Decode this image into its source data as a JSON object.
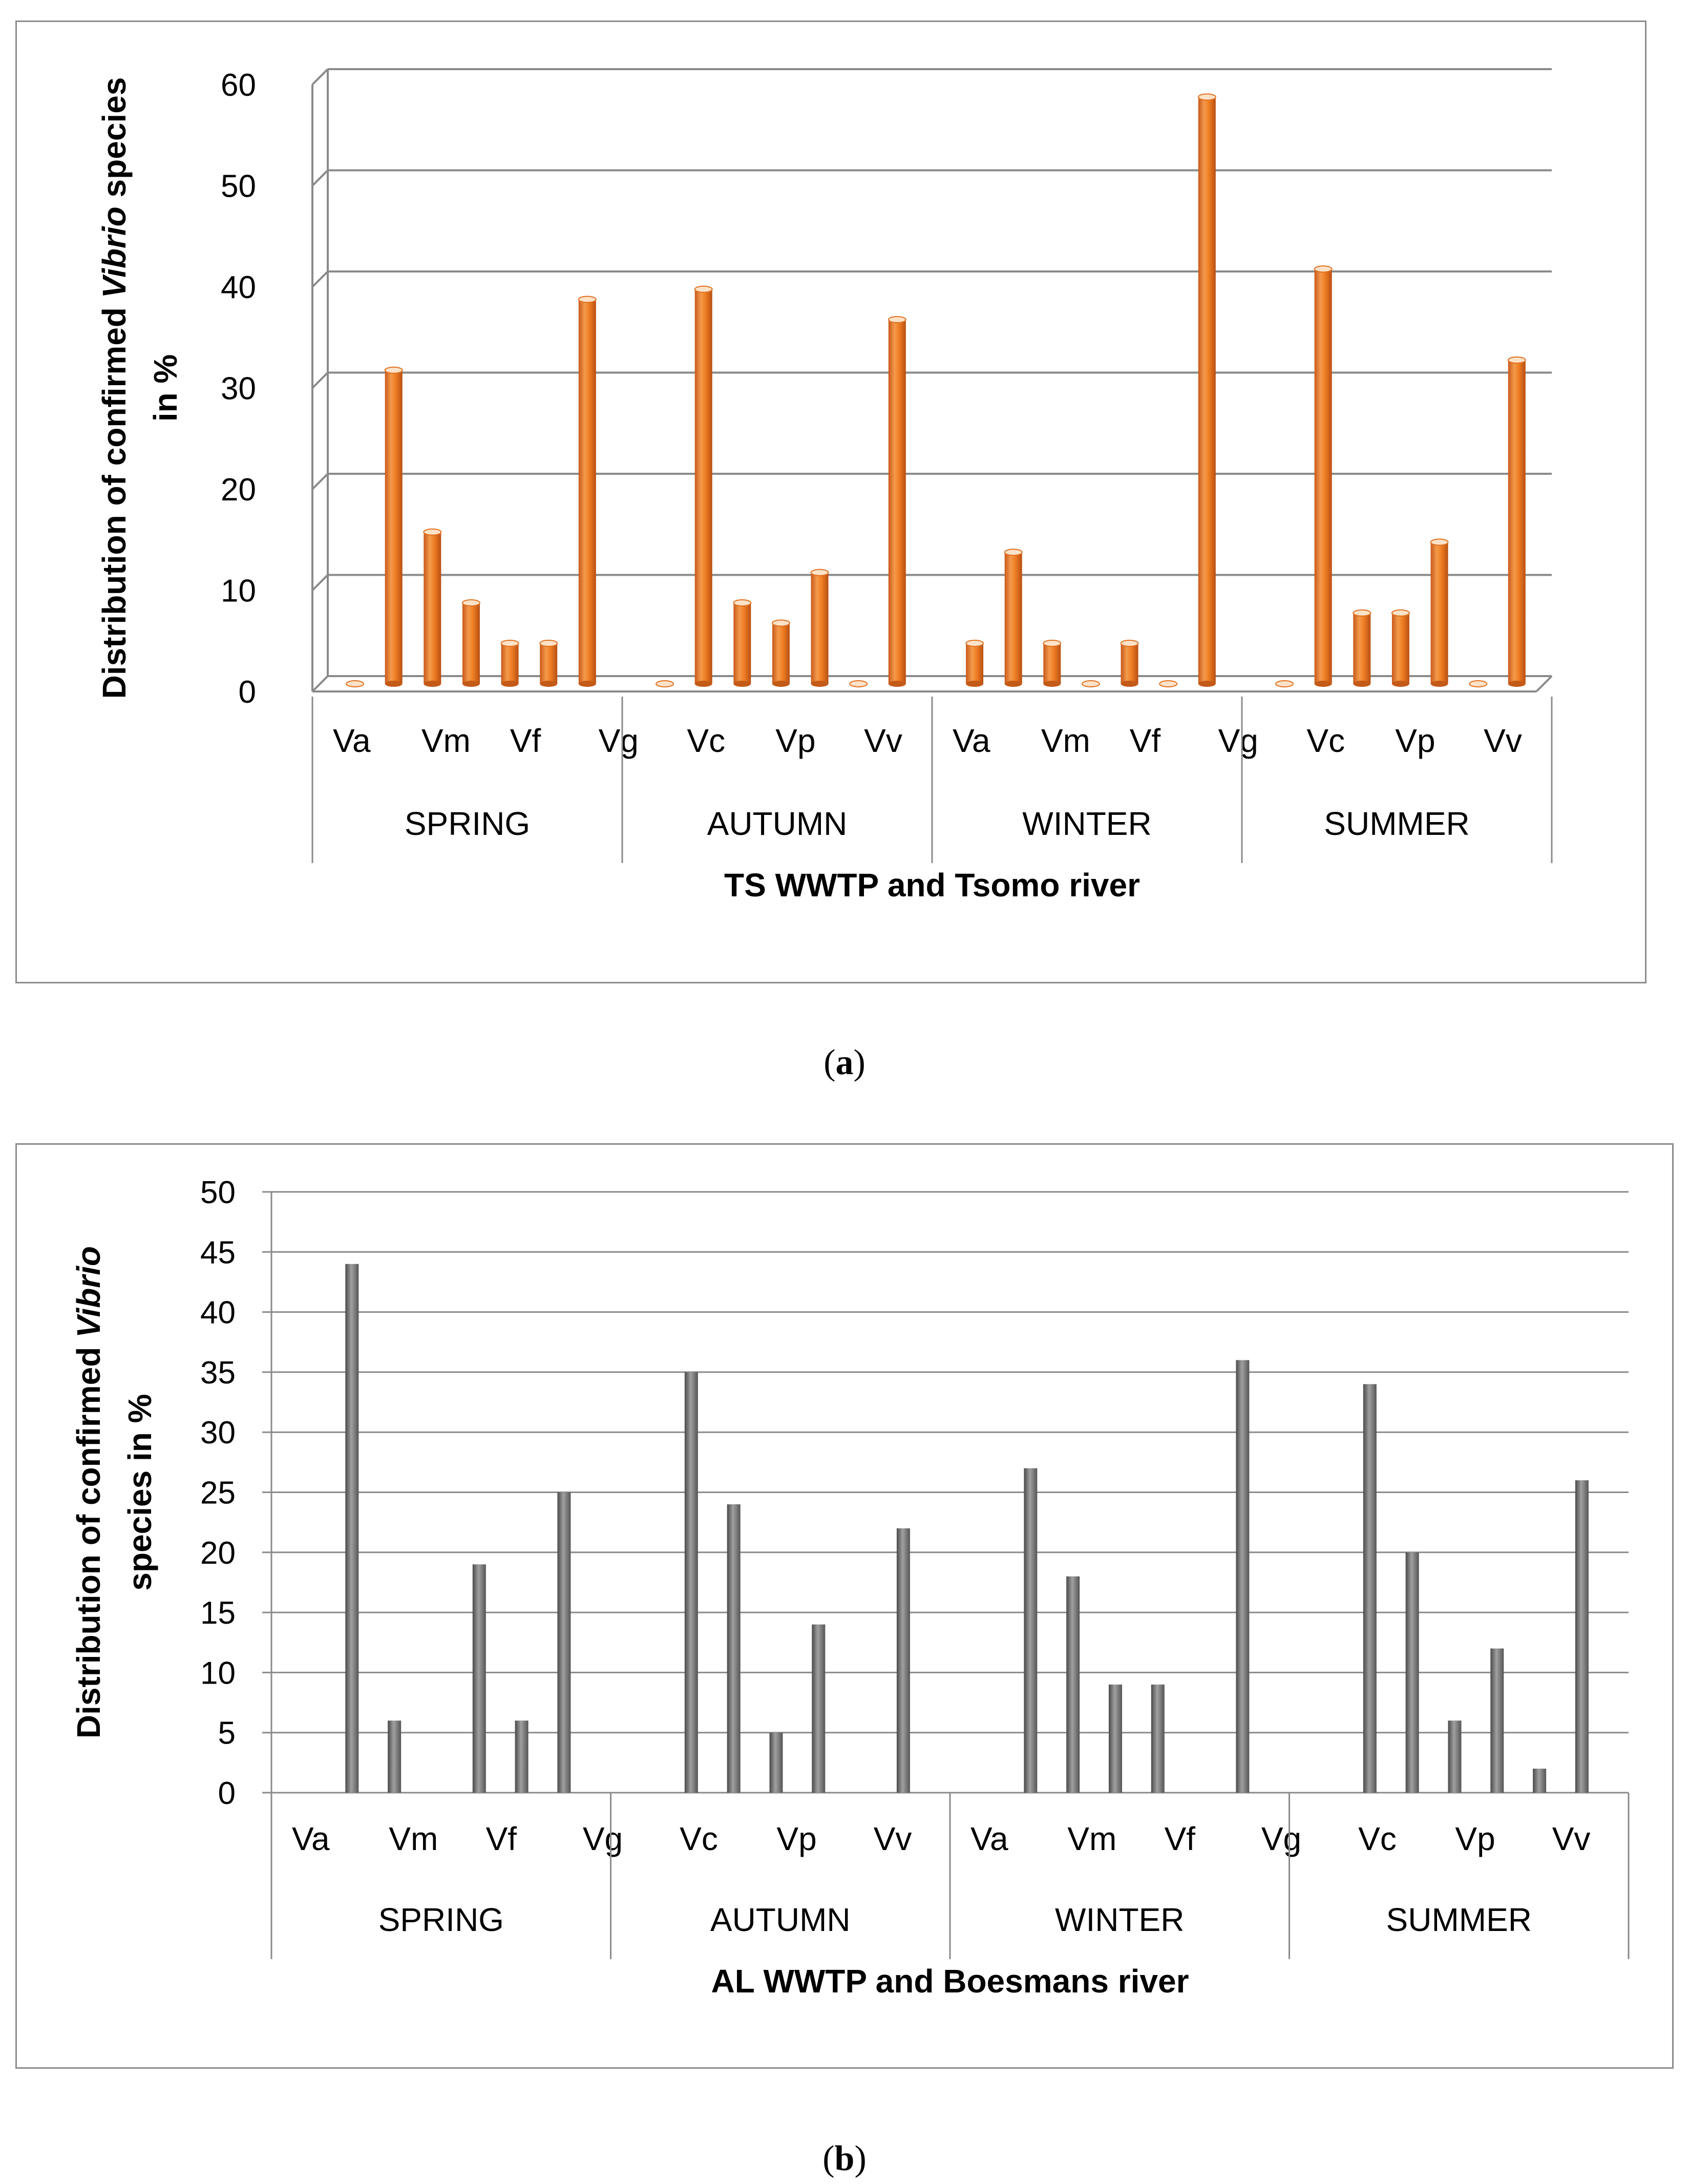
{
  "charts": {
    "a": {
      "caption_open": "(",
      "caption_letter": "a",
      "caption_close": ")"
    },
    "b": {
      "caption_open": "(",
      "caption_letter": "b",
      "caption_close": ")"
    }
  },
  "chart_data": [
    {
      "id": "a",
      "type": "bar",
      "style": "3d-cylinder",
      "color": "#f07f24",
      "xlabel": "TS WWTP and Tsomo river",
      "ylabel_parts": [
        "Distribution  of confirmed ",
        "Vibrio",
        " species"
      ],
      "ylabel_line2": "in  %",
      "ylim": [
        0,
        60
      ],
      "yticks": [
        0,
        10,
        20,
        30,
        40,
        50,
        60
      ],
      "groups": [
        "SPRING",
        "AUTUMN",
        "WINTER",
        "SUMMER"
      ],
      "category_labels": [
        "Va",
        "Vm",
        "Vf",
        "Vg",
        "Vc",
        "Vp",
        "Vv",
        "Va",
        "Vm",
        "Vf",
        "Vg",
        "Vc",
        "Vp",
        "Vv"
      ],
      "values": [
        [
          0,
          31,
          15,
          8,
          4,
          4,
          38
        ],
        [
          0,
          39,
          8,
          6,
          11,
          0,
          36
        ],
        [
          4,
          13,
          4,
          0,
          4,
          0,
          58
        ],
        [
          0,
          41,
          7,
          7,
          14,
          0,
          32
        ]
      ]
    },
    {
      "id": "b",
      "type": "bar",
      "style": "flat",
      "color": "#7a7a7a",
      "xlabel": "AL WWTP and Boesmans river",
      "ylabel_parts": [
        "Distribution  of confirmed ",
        "Vibrio",
        ""
      ],
      "ylabel_line2": "species in  %",
      "ylim": [
        0,
        50
      ],
      "yticks": [
        0,
        5,
        10,
        15,
        20,
        25,
        30,
        35,
        40,
        45,
        50
      ],
      "groups": [
        "SPRING",
        "AUTUMN",
        "WINTER",
        "SUMMER"
      ],
      "category_labels": [
        "Va",
        "Vm",
        "Vf",
        "Vg",
        "Vc",
        "Vp",
        "Vv",
        "Va",
        "Vm",
        "Vf",
        "Vg",
        "Vc",
        "Vp",
        "Vv"
      ],
      "values": [
        [
          0,
          44,
          6,
          0,
          19,
          6,
          25
        ],
        [
          0,
          35,
          24,
          5,
          14,
          0,
          22
        ],
        [
          0,
          27,
          18,
          9,
          9,
          0,
          36
        ],
        [
          0,
          34,
          20,
          6,
          12,
          2,
          26
        ]
      ]
    }
  ]
}
